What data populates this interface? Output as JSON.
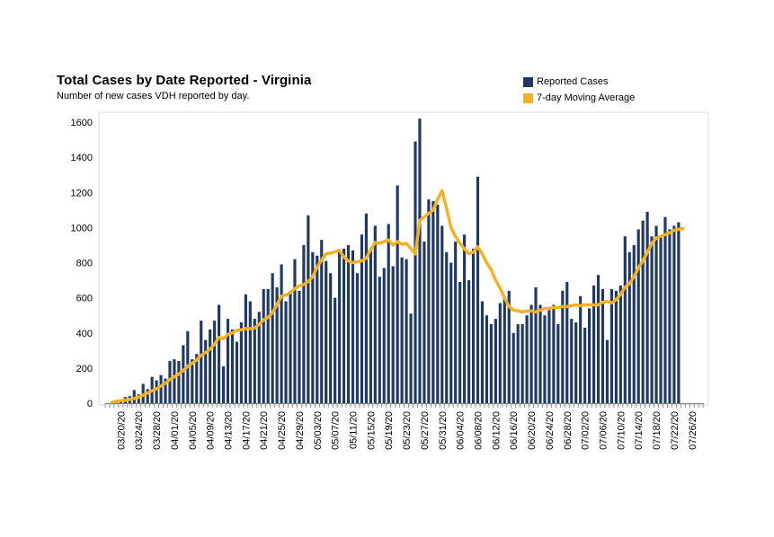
{
  "chart_data": {
    "type": "bar",
    "title": "Total Cases by Date Reported - Virginia",
    "subtitle": "Number of new cases VDH reported by day.",
    "xlabel": "",
    "ylabel": "",
    "ylim": [
      0,
      1700
    ],
    "yticks": [
      0,
      200,
      400,
      600,
      800,
      1000,
      1200,
      1400,
      1600
    ],
    "x_start": "03/17/20",
    "x_end": "07/28/20",
    "xtick_labels": [
      "03/20/20",
      "03/24/20",
      "03/28/20",
      "04/01/20",
      "04/05/20",
      "04/09/20",
      "04/13/20",
      "04/17/20",
      "04/21/20",
      "04/25/20",
      "04/29/20",
      "05/03/20",
      "05/07/20",
      "05/11/20",
      "05/15/20",
      "05/19/20",
      "05/23/20",
      "05/27/20",
      "05/31/20",
      "06/04/20",
      "06/08/20",
      "06/12/20",
      "06/16/20",
      "06/20/20",
      "06/24/20",
      "06/28/20",
      "07/02/20",
      "07/06/20",
      "07/10/20",
      "07/14/20",
      "07/18/20",
      "07/22/20",
      "07/26/20"
    ],
    "grid": false,
    "legend_position": "top-right",
    "series": [
      {
        "name": "Reported Cases",
        "type": "bar",
        "color": "#1f3864",
        "start_date": "03/18/20",
        "values": [
          5,
          10,
          20,
          35,
          40,
          75,
          50,
          110,
          80,
          150,
          130,
          160,
          140,
          240,
          250,
          240,
          330,
          410,
          250,
          280,
          470,
          360,
          420,
          470,
          560,
          210,
          480,
          420,
          350,
          460,
          620,
          580,
          480,
          520,
          650,
          650,
          740,
          660,
          790,
          580,
          640,
          820,
          640,
          900,
          1070,
          860,
          840,
          930,
          810,
          740,
          600,
          860,
          880,
          900,
          870,
          740,
          960,
          1080,
          870,
          1010,
          720,
          770,
          1020,
          780,
          1240,
          830,
          820,
          510,
          1490,
          1620,
          920,
          1160,
          1150,
          1130,
          1010,
          860,
          800,
          920,
          690,
          960,
          700,
          880,
          1290,
          580,
          500,
          450,
          480,
          570,
          600,
          640,
          400,
          450,
          450,
          500,
          560,
          660,
          560,
          500,
          530,
          560,
          450,
          640,
          690,
          480,
          460,
          610,
          430,
          540,
          670,
          730,
          650,
          360,
          650,
          640,
          670,
          950,
          860,
          900,
          990,
          1040,
          1090,
          950,
          1010,
          950,
          1060,
          990,
          1010,
          1030
        ]
      },
      {
        "name": "7-day Moving Average",
        "type": "line",
        "color": "#f4b124",
        "start_date": "03/18/20",
        "values": [
          5,
          10,
          14,
          18,
          22,
          27,
          34,
          46,
          58,
          71,
          82,
          98,
          114,
          135,
          150,
          166,
          186,
          210,
          227,
          246,
          273,
          288,
          309,
          335,
          375,
          367,
          392,
          400,
          415,
          418,
          425,
          424,
          428,
          448,
          475,
          488,
          515,
          560,
          610,
          615,
          630,
          652,
          668,
          676,
          693,
          720,
          775,
          815,
          850,
          855,
          862,
          870,
          832,
          810,
          800,
          805,
          810,
          825,
          875,
          915,
          910,
          920,
          930,
          900,
          920,
          905,
          910,
          880,
          850,
          1040,
          1060,
          1080,
          1100,
          1160,
          1210,
          1110,
          1000,
          950,
          910,
          880,
          850,
          860,
          890,
          850,
          800,
          760,
          700,
          655,
          600,
          550,
          530,
          525,
          520,
          525,
          525,
          520,
          530,
          540,
          540,
          545,
          545,
          550,
          550,
          555,
          560,
          555,
          560,
          560,
          560,
          560,
          575,
          580,
          570,
          590,
          620,
          660,
          680,
          720,
          770,
          810,
          860,
          910,
          940,
          950,
          960,
          970,
          985,
          990,
          995
        ]
      }
    ]
  }
}
